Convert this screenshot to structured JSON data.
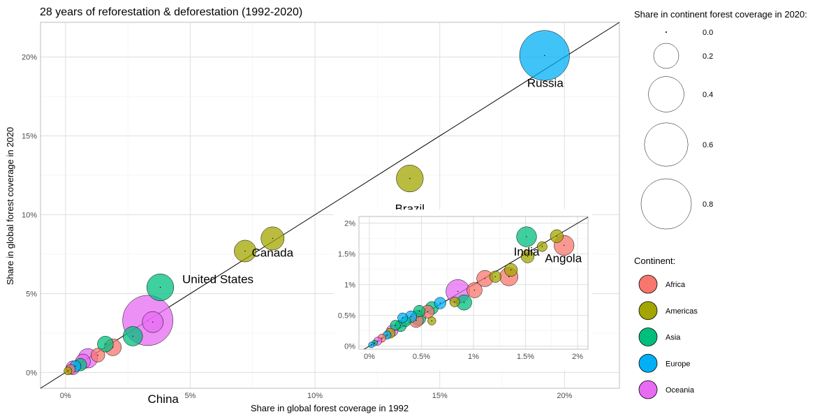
{
  "chart_data": {
    "type": "scatter",
    "title": "28 years of reforestation & deforestation (1992-2020)",
    "xlabel": "Share in global forest coverage in 1992",
    "ylabel": "Share in global forest coverage in 2020",
    "xlim": [
      -0.01,
      0.222
    ],
    "ylim": [
      -0.01,
      0.222
    ],
    "x_ticks": [
      "0%",
      "5%",
      "10%",
      "15%",
      "20%"
    ],
    "y_ticks": [
      "0%",
      "5%",
      "10%",
      "15%",
      "20%"
    ],
    "tick_values": [
      0,
      0.05,
      0.1,
      0.15,
      0.2
    ],
    "reference_line": "y = x",
    "grid": true,
    "size_legend": {
      "title": "Share in continent forest coverage in 2020:",
      "values": [
        0.0,
        0.2,
        0.4,
        0.6,
        0.8
      ],
      "labels": [
        "0.0",
        "0.2",
        "0.4",
        "0.6",
        "0.8"
      ]
    },
    "color_legend": {
      "title": "Continent:",
      "entries": [
        {
          "name": "Africa",
          "color": "#F8766D"
        },
        {
          "name": "Americas",
          "color": "#A3A500"
        },
        {
          "name": "Asia",
          "color": "#00BF7D"
        },
        {
          "name": "Europe",
          "color": "#00B0F6"
        },
        {
          "name": "Oceania",
          "color": "#E76BF3"
        }
      ]
    },
    "points": [
      {
        "x": 0.192,
        "y": 0.201,
        "size": 0.79,
        "continent": "Europe",
        "label": "Russia"
      },
      {
        "x": 0.138,
        "y": 0.123,
        "size": 0.23,
        "continent": "Americas",
        "label": "Brazil"
      },
      {
        "x": 0.083,
        "y": 0.085,
        "size": 0.17,
        "continent": "Americas",
        "label": "Canada"
      },
      {
        "x": 0.072,
        "y": 0.077,
        "size": 0.15,
        "continent": "Americas",
        "label": "United States"
      },
      {
        "x": 0.038,
        "y": 0.054,
        "size": 0.23,
        "continent": "Asia",
        "label": ""
      },
      {
        "x": 0.033,
        "y": 0.033,
        "size": 0.8,
        "continent": "Oceania",
        "label": "China"
      },
      {
        "x": 0.035,
        "y": 0.032,
        "size": 0.14,
        "continent": "Oceania",
        "label": ""
      },
      {
        "x": 0.027,
        "y": 0.023,
        "size": 0.12,
        "continent": "Asia",
        "label": ""
      },
      {
        "x": 0.019,
        "y": 0.016,
        "size": 0.09,
        "continent": "Africa",
        "label": ""
      },
      {
        "x": 0.016,
        "y": 0.018,
        "size": 0.08,
        "continent": "Asia",
        "label": ""
      },
      {
        "x": 0.013,
        "y": 0.011,
        "size": 0.06,
        "continent": "Africa",
        "label": ""
      },
      {
        "x": 0.009,
        "y": 0.009,
        "size": 0.12,
        "continent": "Oceania",
        "label": ""
      },
      {
        "x": 0.007,
        "y": 0.007,
        "size": 0.07,
        "continent": "Oceania",
        "label": ""
      },
      {
        "x": 0.006,
        "y": 0.005,
        "size": 0.05,
        "continent": "Asia",
        "label": ""
      },
      {
        "x": 0.004,
        "y": 0.004,
        "size": 0.04,
        "continent": "Europe",
        "label": ""
      },
      {
        "x": 0.003,
        "y": 0.003,
        "size": 0.06,
        "continent": "Oceania",
        "label": ""
      },
      {
        "x": 0.002,
        "y": 0.002,
        "size": 0.03,
        "continent": "Africa",
        "label": ""
      },
      {
        "x": 0.001,
        "y": 0.001,
        "size": 0.02,
        "continent": "Americas",
        "label": ""
      }
    ],
    "inset": {
      "xlim": [
        -0.001,
        0.021
      ],
      "ylim": [
        -0.0005,
        0.0211
      ],
      "x_ticks": [
        "0%",
        "0.5%",
        "1%",
        "1.5%",
        "2%"
      ],
      "y_ticks": [
        "0%",
        "0.5%",
        "1%",
        "1.5%",
        "2%"
      ],
      "tick_values": [
        0,
        0.005,
        0.01,
        0.015,
        0.02
      ],
      "points": [
        {
          "x": 0.0187,
          "y": 0.0164,
          "size": 0.12,
          "continent": "Africa",
          "label": "Angola"
        },
        {
          "x": 0.0151,
          "y": 0.0178,
          "size": 0.12,
          "continent": "Asia",
          "label": "India"
        },
        {
          "x": 0.0152,
          "y": 0.0146,
          "size": 0.05,
          "continent": "Americas",
          "label": ""
        },
        {
          "x": 0.0166,
          "y": 0.0162,
          "size": 0.03,
          "continent": "Americas",
          "label": ""
        },
        {
          "x": 0.018,
          "y": 0.0179,
          "size": 0.05,
          "continent": "Americas",
          "label": ""
        },
        {
          "x": 0.0136,
          "y": 0.0124,
          "size": 0.05,
          "continent": "Americas",
          "label": ""
        },
        {
          "x": 0.0134,
          "y": 0.0113,
          "size": 0.1,
          "continent": "Africa",
          "label": ""
        },
        {
          "x": 0.0121,
          "y": 0.0113,
          "size": 0.04,
          "continent": "Americas",
          "label": ""
        },
        {
          "x": 0.0111,
          "y": 0.011,
          "size": 0.08,
          "continent": "Africa",
          "label": ""
        },
        {
          "x": 0.0101,
          "y": 0.0091,
          "size": 0.07,
          "continent": "Africa",
          "label": ""
        },
        {
          "x": 0.0091,
          "y": 0.0071,
          "size": 0.07,
          "continent": "Asia",
          "label": ""
        },
        {
          "x": 0.0085,
          "y": 0.0089,
          "size": 0.17,
          "continent": "Oceania",
          "label": ""
        },
        {
          "x": 0.0082,
          "y": 0.0072,
          "size": 0.03,
          "continent": "Americas",
          "label": ""
        },
        {
          "x": 0.0068,
          "y": 0.007,
          "size": 0.04,
          "continent": "Europe",
          "label": ""
        },
        {
          "x": 0.006,
          "y": 0.0062,
          "size": 0.05,
          "continent": "Asia",
          "label": ""
        },
        {
          "x": 0.006,
          "y": 0.0041,
          "size": 0.02,
          "continent": "Americas",
          "label": ""
        },
        {
          "x": 0.0056,
          "y": 0.0056,
          "size": 0.05,
          "continent": "Africa",
          "label": ""
        },
        {
          "x": 0.0048,
          "y": 0.0057,
          "size": 0.04,
          "continent": "Asia",
          "label": ""
        },
        {
          "x": 0.0047,
          "y": 0.0046,
          "size": 0.07,
          "continent": "Asia",
          "label": ""
        },
        {
          "x": 0.0045,
          "y": 0.0042,
          "size": 0.06,
          "continent": "Africa",
          "label": ""
        },
        {
          "x": 0.004,
          "y": 0.0048,
          "size": 0.04,
          "continent": "Europe",
          "label": ""
        },
        {
          "x": 0.0035,
          "y": 0.004,
          "size": 0.03,
          "continent": "Asia",
          "label": ""
        },
        {
          "x": 0.0032,
          "y": 0.0046,
          "size": 0.03,
          "continent": "Europe",
          "label": ""
        },
        {
          "x": 0.003,
          "y": 0.0033,
          "size": 0.04,
          "continent": "Asia",
          "label": ""
        },
        {
          "x": 0.0025,
          "y": 0.0034,
          "size": 0.03,
          "continent": "Asia",
          "label": ""
        },
        {
          "x": 0.0022,
          "y": 0.0025,
          "size": 0.04,
          "continent": "Oceania",
          "label": ""
        },
        {
          "x": 0.002,
          "y": 0.0021,
          "size": 0.03,
          "continent": "Americas",
          "label": ""
        },
        {
          "x": 0.0017,
          "y": 0.0018,
          "size": 0.02,
          "continent": "Europe",
          "label": ""
        },
        {
          "x": 0.0012,
          "y": 0.0013,
          "size": 0.02,
          "continent": "Africa",
          "label": ""
        },
        {
          "x": 0.0008,
          "y": 0.0008,
          "size": 0.02,
          "continent": "Oceania",
          "label": ""
        },
        {
          "x": 0.0005,
          "y": 0.0005,
          "size": 0.01,
          "continent": "Asia",
          "label": ""
        },
        {
          "x": 0.0002,
          "y": 0.0002,
          "size": 0.01,
          "continent": "Europe",
          "label": ""
        }
      ]
    }
  }
}
